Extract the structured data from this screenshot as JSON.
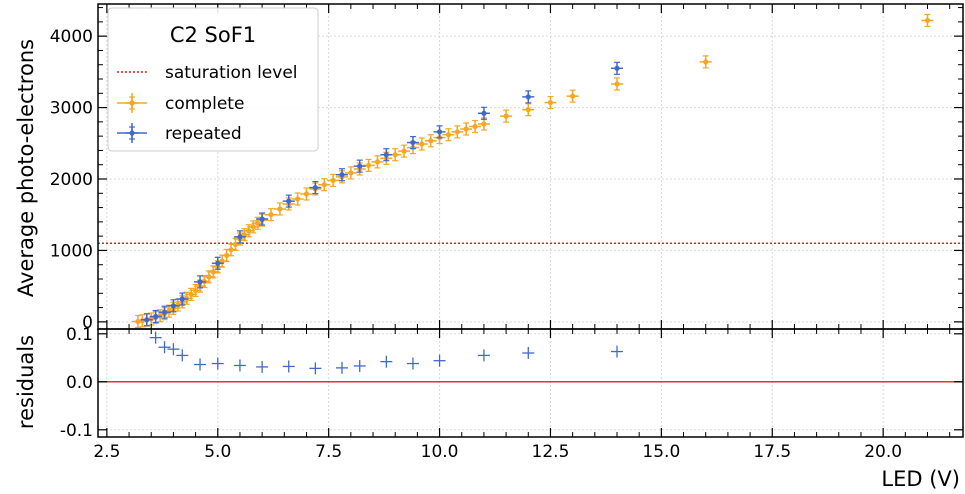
{
  "colors": {
    "complete": "#f5a623",
    "repeated": "#4169cd",
    "saturation": "#dd2222",
    "residual_zero": "#dd2222",
    "grid": "#d9d9d9"
  },
  "legend": {
    "title": "C2 SoF1",
    "saturation_label": "saturation level",
    "complete_label": "complete",
    "repeated_label": "repeated",
    "placement": "top-left"
  },
  "chart_data": [
    {
      "type": "scatter",
      "panel": "main",
      "ylabel": "Average photo-electrons",
      "xlabel": "",
      "xlim": [
        2.3,
        21.8
      ],
      "ylim": [
        -100,
        4450
      ],
      "grid": true,
      "x_ticks": [
        2.5,
        5.0,
        7.5,
        10.0,
        12.5,
        15.0,
        17.5,
        20.0
      ],
      "y_ticks": [
        0,
        1000,
        2000,
        3000,
        4000
      ],
      "saturation_level": 1100,
      "series": [
        {
          "name": "complete",
          "points": [
            [
              3.2,
              5
            ],
            [
              3.3,
              15
            ],
            [
              3.4,
              25
            ],
            [
              3.5,
              40
            ],
            [
              3.6,
              60
            ],
            [
              3.7,
              85
            ],
            [
              3.8,
              115
            ],
            [
              3.9,
              150
            ],
            [
              4.0,
              190
            ],
            [
              4.1,
              235
            ],
            [
              4.2,
              280
            ],
            [
              4.3,
              330
            ],
            [
              4.4,
              385
            ],
            [
              4.5,
              440
            ],
            [
              4.6,
              500
            ],
            [
              4.7,
              565
            ],
            [
              4.8,
              630
            ],
            [
              4.9,
              700
            ],
            [
              5.0,
              770
            ],
            [
              5.1,
              850
            ],
            [
              5.2,
              930
            ],
            [
              5.3,
              1010
            ],
            [
              5.4,
              1085
            ],
            [
              5.5,
              1160
            ],
            [
              5.6,
              1220
            ],
            [
              5.7,
              1275
            ],
            [
              5.8,
              1330
            ],
            [
              5.9,
              1380
            ],
            [
              6.0,
              1425
            ],
            [
              6.2,
              1500
            ],
            [
              6.4,
              1580
            ],
            [
              6.6,
              1650
            ],
            [
              6.8,
              1720
            ],
            [
              7.0,
              1790
            ],
            [
              7.2,
              1860
            ],
            [
              7.4,
              1920
            ],
            [
              7.6,
              1980
            ],
            [
              7.8,
              2030
            ],
            [
              8.0,
              2085
            ],
            [
              8.2,
              2140
            ],
            [
              8.4,
              2190
            ],
            [
              8.6,
              2240
            ],
            [
              8.8,
              2290
            ],
            [
              9.0,
              2340
            ],
            [
              9.2,
              2390
            ],
            [
              9.4,
              2440
            ],
            [
              9.6,
              2490
            ],
            [
              9.8,
              2535
            ],
            [
              10.0,
              2580
            ],
            [
              10.2,
              2620
            ],
            [
              10.4,
              2660
            ],
            [
              10.6,
              2700
            ],
            [
              10.8,
              2735
            ],
            [
              11.0,
              2770
            ],
            [
              11.5,
              2880
            ],
            [
              12.0,
              2970
            ],
            [
              12.5,
              3070
            ],
            [
              13.0,
              3160
            ],
            [
              14.0,
              3330
            ],
            [
              16.0,
              3640
            ],
            [
              21.0,
              4220
            ]
          ]
        },
        {
          "name": "repeated",
          "points": [
            [
              3.4,
              30
            ],
            [
              3.6,
              75
            ],
            [
              3.8,
              135
            ],
            [
              4.0,
              225
            ],
            [
              4.2,
              320
            ],
            [
              4.6,
              560
            ],
            [
              5.0,
              820
            ],
            [
              5.5,
              1190
            ],
            [
              6.0,
              1440
            ],
            [
              6.6,
              1690
            ],
            [
              7.2,
              1880
            ],
            [
              7.8,
              2060
            ],
            [
              8.2,
              2180
            ],
            [
              8.8,
              2340
            ],
            [
              9.4,
              2510
            ],
            [
              10.0,
              2660
            ],
            [
              11.0,
              2920
            ],
            [
              12.0,
              3150
            ],
            [
              14.0,
              3550
            ]
          ]
        }
      ]
    },
    {
      "type": "scatter",
      "panel": "residuals",
      "ylabel": "residuals",
      "xlabel": "LED (V)",
      "xlim": [
        2.3,
        21.8
      ],
      "ylim": [
        -0.115,
        0.11
      ],
      "grid": true,
      "x_ticks": [
        2.5,
        5.0,
        7.5,
        10.0,
        12.5,
        15.0,
        17.5,
        20.0
      ],
      "x_tick_labels": [
        "2.5",
        "5.0",
        "7.5",
        "10.0",
        "12.5",
        "15.0",
        "17.5",
        "20.0"
      ],
      "y_ticks": [
        -0.1,
        0.0,
        0.1
      ],
      "y_tick_labels": [
        "-0.1",
        "0.0",
        "0.1"
      ],
      "zero_line": 0.0,
      "series": [
        {
          "name": "repeated",
          "points": [
            [
              3.6,
              0.092
            ],
            [
              3.8,
              0.072
            ],
            [
              4.0,
              0.068
            ],
            [
              4.2,
              0.055
            ],
            [
              4.6,
              0.036
            ],
            [
              5.0,
              0.038
            ],
            [
              5.5,
              0.034
            ],
            [
              6.0,
              0.031
            ],
            [
              6.6,
              0.032
            ],
            [
              7.2,
              0.028
            ],
            [
              7.8,
              0.029
            ],
            [
              8.2,
              0.033
            ],
            [
              8.8,
              0.042
            ],
            [
              9.4,
              0.038
            ],
            [
              10.0,
              0.044
            ],
            [
              11.0,
              0.055
            ],
            [
              12.0,
              0.06
            ],
            [
              14.0,
              0.063
            ]
          ]
        }
      ]
    }
  ]
}
